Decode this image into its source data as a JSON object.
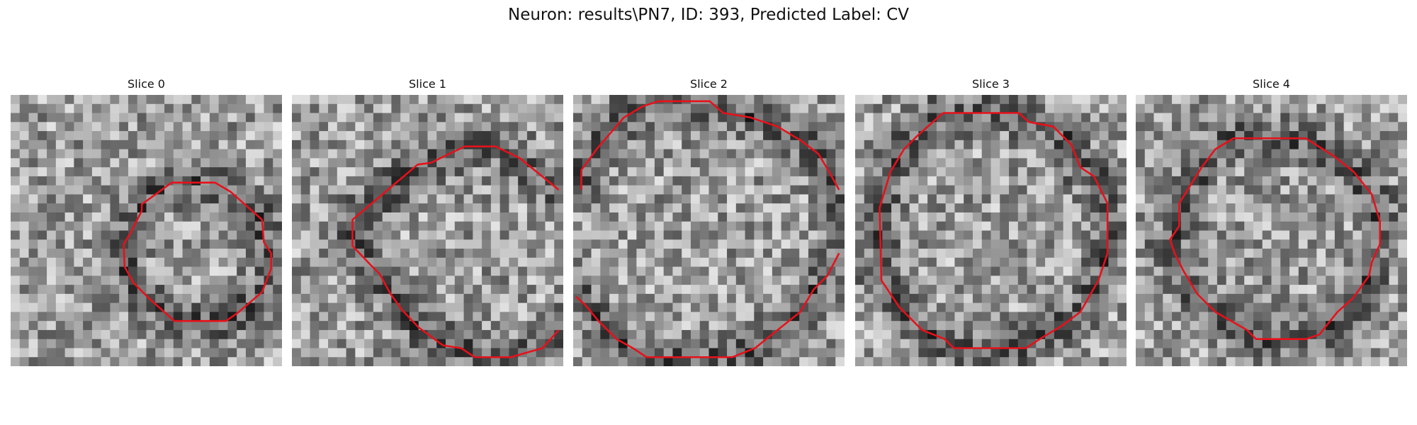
{
  "title": "Neuron: results\\PN7, ID: 393, Predicted Label: CV",
  "panels": [
    {
      "title": "Slice 0"
    },
    {
      "title": "Slice 1"
    },
    {
      "title": "Slice 2"
    },
    {
      "title": "Slice 3"
    },
    {
      "title": "Slice 4"
    }
  ]
}
